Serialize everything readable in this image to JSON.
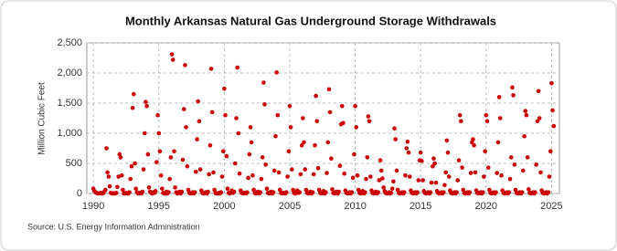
{
  "chart_data": {
    "type": "scatter",
    "title": "Monthly Arkansas Natural  Gas Underground Storage Withdrawals",
    "y_label": "Million Cubic Feet",
    "source": "Source: U.S. Energy Information Administration",
    "color": "#cc0000",
    "grid": true,
    "xlim": [
      1989.5,
      2025.6
    ],
    "xticks": [
      1990,
      1995,
      2000,
      2005,
      2010,
      2015,
      2020,
      2025
    ],
    "ylim": [
      0,
      2500
    ],
    "yticks": [
      0,
      500,
      {
        "value": 1000,
        "label": "1,000"
      },
      {
        "value": 1500,
        "label": "1,500"
      },
      {
        "value": 2000,
        "label": "2,000"
      },
      {
        "value": 2500,
        "label": "2,500"
      }
    ],
    "x": [
      1990,
      1990.08,
      1990.17,
      1990.25,
      1990.33,
      1990.42,
      1990.5,
      1990.58,
      1990.67,
      1990.75,
      1990.83,
      1990.92,
      1991,
      1991.08,
      1991.17,
      1991.25,
      1991.33,
      1991.42,
      1991.5,
      1991.58,
      1991.67,
      1991.75,
      1991.83,
      1991.92,
      1992,
      1992.08,
      1992.17,
      1992.25,
      1992.33,
      1992.42,
      1992.5,
      1992.58,
      1992.67,
      1992.75,
      1992.83,
      1992.92,
      1993,
      1993.08,
      1993.17,
      1993.25,
      1993.33,
      1993.42,
      1993.5,
      1993.58,
      1993.67,
      1993.75,
      1993.83,
      1993.92,
      1994,
      1994.08,
      1994.17,
      1994.25,
      1994.33,
      1994.42,
      1994.5,
      1994.58,
      1994.67,
      1994.75,
      1994.83,
      1994.92,
      1995,
      1995.08,
      1995.17,
      1995.25,
      1995.33,
      1995.42,
      1995.5,
      1995.58,
      1995.67,
      1995.75,
      1995.83,
      1995.92,
      1996,
      1996.08,
      1996.17,
      1996.25,
      1996.33,
      1996.42,
      1996.5,
      1996.58,
      1996.67,
      1996.75,
      1996.83,
      1996.92,
      1997,
      1997.08,
      1997.17,
      1997.25,
      1997.33,
      1997.42,
      1997.5,
      1997.58,
      1997.67,
      1997.75,
      1997.83,
      1997.92,
      1998,
      1998.08,
      1998.17,
      1998.25,
      1998.33,
      1998.42,
      1998.5,
      1998.58,
      1998.67,
      1998.75,
      1998.83,
      1998.92,
      1999,
      1999.08,
      1999.17,
      1999.25,
      1999.33,
      1999.42,
      1999.5,
      1999.58,
      1999.67,
      1999.75,
      1999.83,
      1999.92,
      2000,
      2000.08,
      2000.17,
      2000.25,
      2000.33,
      2000.42,
      2000.5,
      2000.58,
      2000.67,
      2000.75,
      2000.83,
      2000.92,
      2001,
      2001.08,
      2001.17,
      2001.25,
      2001.33,
      2001.42,
      2001.5,
      2001.58,
      2001.67,
      2001.75,
      2001.83,
      2001.92,
      2002,
      2002.08,
      2002.17,
      2002.25,
      2002.33,
      2002.42,
      2002.5,
      2002.58,
      2002.67,
      2002.75,
      2002.83,
      2002.92,
      2003,
      2003.08,
      2003.17,
      2003.25,
      2003.33,
      2003.42,
      2003.5,
      2003.58,
      2003.67,
      2003.75,
      2003.83,
      2003.92,
      2004,
      2004.08,
      2004.17,
      2004.25,
      2004.33,
      2004.42,
      2004.5,
      2004.58,
      2004.67,
      2004.75,
      2004.83,
      2004.92,
      2005,
      2005.08,
      2005.17,
      2005.25,
      2005.33,
      2005.42,
      2005.5,
      2005.58,
      2005.67,
      2005.75,
      2005.83,
      2005.92,
      2006,
      2006.08,
      2006.17,
      2006.25,
      2006.33,
      2006.42,
      2006.5,
      2006.58,
      2006.67,
      2006.75,
      2006.83,
      2006.92,
      2007,
      2007.08,
      2007.17,
      2007.25,
      2007.33,
      2007.42,
      2007.5,
      2007.58,
      2007.67,
      2007.75,
      2007.83,
      2007.92,
      2008,
      2008.08,
      2008.17,
      2008.25,
      2008.33,
      2008.42,
      2008.5,
      2008.58,
      2008.67,
      2008.75,
      2008.83,
      2008.92,
      2009,
      2009.08,
      2009.17,
      2009.25,
      2009.33,
      2009.42,
      2009.5,
      2009.58,
      2009.67,
      2009.75,
      2009.83,
      2009.92,
      2010,
      2010.08,
      2010.17,
      2010.25,
      2010.33,
      2010.42,
      2010.5,
      2010.58,
      2010.67,
      2010.75,
      2010.83,
      2010.92,
      2011,
      2011.08,
      2011.17,
      2011.25,
      2011.33,
      2011.42,
      2011.5,
      2011.58,
      2011.67,
      2011.75,
      2011.83,
      2011.92,
      2012,
      2012.08,
      2012.17,
      2012.25,
      2012.33,
      2012.42,
      2012.5,
      2012.58,
      2012.67,
      2012.75,
      2012.83,
      2012.92,
      2013,
      2013.08,
      2013.17,
      2013.25,
      2013.33,
      2013.42,
      2013.5,
      2013.58,
      2013.67,
      2013.75,
      2013.83,
      2013.92,
      2014,
      2014.08,
      2014.17,
      2014.25,
      2014.33,
      2014.42,
      2014.5,
      2014.58,
      2014.67,
      2014.75,
      2014.83,
      2014.92,
      2015,
      2015.08,
      2015.17,
      2015.25,
      2015.33,
      2015.42,
      2015.5,
      2015.58,
      2015.67,
      2015.75,
      2015.83,
      2015.92,
      2016,
      2016.08,
      2016.17,
      2016.25,
      2016.33,
      2016.42,
      2016.5,
      2016.58,
      2016.67,
      2016.75,
      2016.83,
      2016.92,
      2017,
      2017.08,
      2017.17,
      2017.25,
      2017.33,
      2017.42,
      2017.5,
      2017.58,
      2017.67,
      2017.75,
      2017.83,
      2017.92,
      2018,
      2018.08,
      2018.17,
      2018.25,
      2018.33,
      2018.42,
      2018.5,
      2018.58,
      2018.67,
      2018.75,
      2018.83,
      2018.92,
      2019,
      2019.08,
      2019.17,
      2019.25,
      2019.33,
      2019.42,
      2019.5,
      2019.58,
      2019.67,
      2019.75,
      2019.83,
      2019.92,
      2020,
      2020.08,
      2020.17,
      2020.25,
      2020.33,
      2020.42,
      2020.5,
      2020.58,
      2020.67,
      2020.75,
      2020.83,
      2020.92,
      2021,
      2021.08,
      2021.17,
      2021.25,
      2021.33,
      2021.42,
      2021.5,
      2021.58,
      2021.67,
      2021.75,
      2021.83,
      2021.92,
      2022,
      2022.08,
      2022.17,
      2022.25,
      2022.33,
      2022.42,
      2022.5,
      2022.58,
      2022.67,
      2022.75,
      2022.83,
      2022.92,
      2023,
      2023.08,
      2023.17,
      2023.25,
      2023.33,
      2023.42,
      2023.5,
      2023.58,
      2023.67,
      2023.75,
      2023.83,
      2023.92,
      2024,
      2024.08,
      2024.17,
      2024.25,
      2024.33,
      2024.42,
      2024.5,
      2024.58,
      2024.67,
      2024.75,
      2024.83,
      2024.92,
      2025,
      2025.08,
      2025.17
    ],
    "values": [
      80,
      40,
      20,
      10,
      0,
      0,
      5,
      10,
      0,
      5,
      30,
      60,
      750,
      350,
      280,
      120,
      10,
      0,
      0,
      5,
      0,
      10,
      110,
      280,
      650,
      600,
      300,
      60,
      0,
      0,
      10,
      5,
      0,
      20,
      240,
      450,
      1420,
      1650,
      500,
      80,
      20,
      0,
      10,
      10,
      0,
      30,
      400,
      1000,
      1520,
      1450,
      650,
      100,
      30,
      10,
      0,
      20,
      10,
      40,
      520,
      1300,
      1000,
      700,
      300,
      80,
      10,
      0,
      0,
      30,
      0,
      20,
      240,
      600,
      2310,
      2220,
      700,
      100,
      20,
      0,
      10,
      30,
      0,
      30,
      560,
      1400,
      2130,
      1100,
      450,
      60,
      10,
      0,
      10,
      20,
      0,
      20,
      360,
      900,
      1530,
      1200,
      400,
      50,
      10,
      0,
      10,
      20,
      0,
      30,
      320,
      800,
      2070,
      1350,
      350,
      60,
      10,
      0,
      0,
      10,
      0,
      20,
      280,
      700,
      1740,
      1300,
      620,
      80,
      10,
      0,
      20,
      50,
      10,
      30,
      500,
      1250,
      2090,
      1000,
      330,
      50,
      10,
      0,
      10,
      10,
      0,
      20,
      260,
      650,
      1100,
      850,
      300,
      60,
      10,
      0,
      20,
      30,
      0,
      20,
      240,
      600,
      1840,
      1480,
      480,
      80,
      10,
      0,
      20,
      30,
      0,
      20,
      380,
      950,
      2010,
      1300,
      350,
      60,
      10,
      0,
      10,
      10,
      0,
      20,
      280,
      700,
      1450,
      1100,
      400,
      60,
      10,
      0,
      20,
      50,
      10,
      20,
      320,
      800,
      1250,
      850,
      400,
      60,
      10,
      0,
      20,
      30,
      0,
      20,
      320,
      800,
      1620,
      1200,
      420,
      60,
      10,
      0,
      20,
      40,
      0,
      20,
      340,
      850,
      1730,
      1350,
      580,
      70,
      10,
      0,
      20,
      30,
      0,
      30,
      460,
      1150,
      1450,
      1170,
      330,
      50,
      10,
      0,
      10,
      20,
      0,
      20,
      260,
      650,
      1450,
      1100,
      300,
      60,
      10,
      0,
      30,
      40,
      0,
      20,
      240,
      600,
      1280,
      1200,
      280,
      50,
      10,
      0,
      20,
      30,
      0,
      20,
      220,
      550,
      380,
      250,
      100,
      40,
      10,
      0,
      10,
      20,
      0,
      10,
      80,
      200,
      1080,
      900,
      380,
      60,
      10,
      0,
      10,
      20,
      0,
      20,
      300,
      750,
      860,
      680,
      280,
      50,
      10,
      0,
      10,
      20,
      0,
      20,
      220,
      550,
      680,
      540,
      220,
      40,
      10,
      0,
      10,
      20,
      0,
      20,
      180,
      450,
      580,
      500,
      180,
      40,
      10,
      0,
      10,
      20,
      0,
      20,
      140,
      350,
      880,
      680,
      280,
      50,
      10,
      0,
      10,
      20,
      0,
      20,
      220,
      550,
      1300,
      1200,
      430,
      60,
      10,
      0,
      10,
      20,
      0,
      20,
      340,
      850,
      900,
      800,
      350,
      50,
      10,
      0,
      10,
      20,
      0,
      20,
      280,
      700,
      1300,
      1200,
      430,
      60,
      10,
      0,
      10,
      20,
      0,
      20,
      340,
      850,
      1600,
      1250,
      300,
      50,
      10,
      0,
      10,
      20,
      0,
      20,
      240,
      600,
      1760,
      1630,
      480,
      60,
      10,
      0,
      10,
      20,
      0,
      20,
      380,
      950,
      1370,
      1300,
      600,
      70,
      10,
      0,
      10,
      20,
      0,
      20,
      480,
      1200,
      1700,
      1250,
      350,
      50,
      10,
      0,
      10,
      20,
      0,
      20,
      280,
      700,
      1830,
      1380,
      1120
    ]
  }
}
